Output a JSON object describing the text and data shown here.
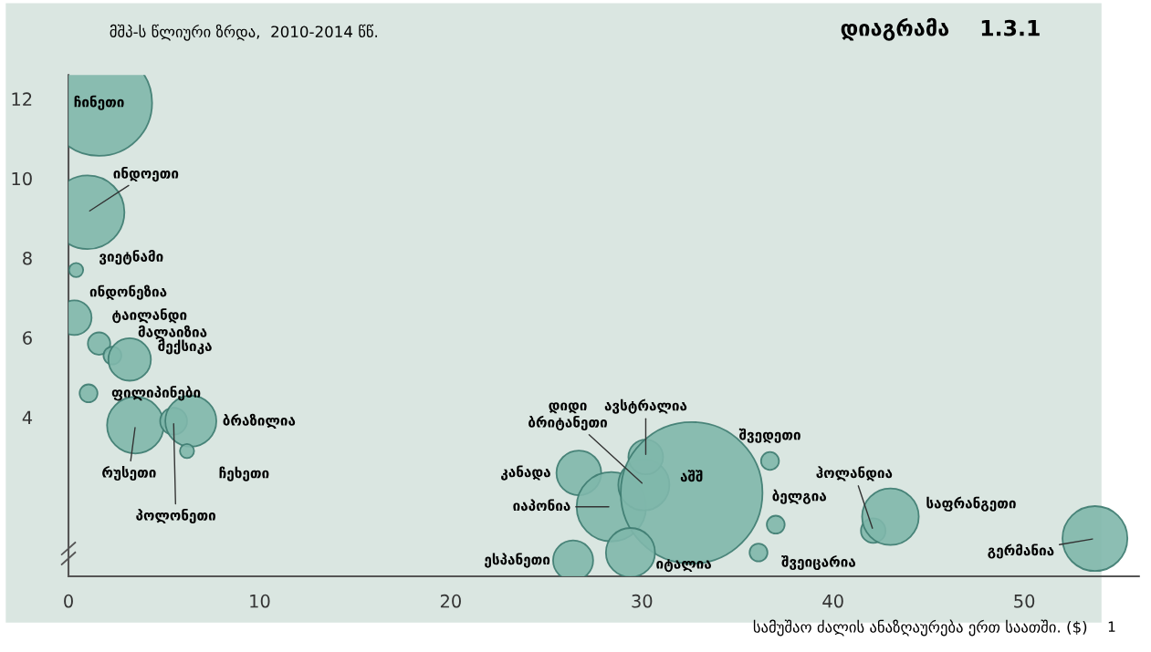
{
  "chart_data": {
    "type": "bubble",
    "title": "დიაგრამა    1.3.1",
    "ylabel": "მშპ-ს წლიური ზრდა,  2010-2014 წწ.",
    "xlabel": "სამუშაო ძალის ანაზღაურება ერთ საათში. ($)",
    "series": [
      {
        "color": "#7fb7ab",
        "x": [
          1.6,
          1.0,
          0.4,
          0.3,
          1.6,
          2.3,
          3.2,
          1.05,
          3.5,
          5.5,
          6.4,
          6.2,
          26.7,
          28.4,
          30.1,
          30.2,
          32.6,
          36.7,
          37.0,
          36.1,
          29.4,
          26.4,
          42.1,
          43.0,
          53.7
        ],
        "values": [
          11.9,
          9.15,
          7.7,
          6.5,
          5.85,
          5.55,
          5.45,
          4.6,
          3.8,
          3.9,
          3.9,
          3.15,
          2.6,
          1.75,
          2.3,
          3.0,
          2.1,
          2.9,
          1.3,
          0.6,
          0.6,
          0.4,
          1.15,
          1.5,
          0.95
        ],
        "sizes": [
          0.56,
          0.27,
          0.01,
          0.06,
          0.025,
          0.016,
          0.09,
          0.016,
          0.16,
          0.036,
          0.13,
          0.01,
          0.1,
          0.24,
          0.13,
          0.06,
          1,
          0.016,
          0.016,
          0.016,
          0.12,
          0.08,
          0.03,
          0.16,
          0.21
        ]
      }
    ],
    "xlim": [
      0,
      56
    ],
    "xticks": [
      0,
      10,
      20,
      30,
      40,
      50
    ],
    "ylim": [
      0,
      12.6
    ],
    "yticks": [
      4,
      6,
      8,
      10,
      12
    ],
    "grid": false,
    "legend": false,
    "annotations": [
      {
        "text": "ჩინეთი",
        "x": 1.6,
        "y": 11.9
      },
      {
        "text": "ინდოეთი",
        "x": 1.0,
        "y": 9.15
      },
      {
        "text": "ვიეტნამი",
        "x": 0.4,
        "y": 7.7
      },
      {
        "text": "ინდონეზია",
        "x": 0.3,
        "y": 6.5
      },
      {
        "text": "ტაილანდი",
        "x": 1.6,
        "y": 5.85
      },
      {
        "text": "მალაიზია",
        "x": 2.3,
        "y": 5.55
      },
      {
        "text": "მექსიკა",
        "x": 3.2,
        "y": 5.45
      },
      {
        "text": "ფილიპინები",
        "x": 1.05,
        "y": 4.6
      },
      {
        "text": "რუსეთი",
        "x": 3.5,
        "y": 3.8
      },
      {
        "text": "პოლონეთი",
        "x": 5.5,
        "y": 3.9
      },
      {
        "text": "ბრაზილია",
        "x": 6.4,
        "y": 3.9
      },
      {
        "text": "ჩეხეთი",
        "x": 6.2,
        "y": 3.15
      },
      {
        "text": "კანადა",
        "x": 26.7,
        "y": 2.6
      },
      {
        "text": "იაპონია",
        "x": 28.4,
        "y": 1.75
      },
      {
        "text": "დიდი\nბრიტანეთი",
        "x": 30.1,
        "y": 2.3
      },
      {
        "text": "ავსტრალია",
        "x": 30.2,
        "y": 3.0
      },
      {
        "text": "აშშ",
        "x": 32.6,
        "y": 2.1
      },
      {
        "text": "შვედეთი",
        "x": 36.7,
        "y": 2.9
      },
      {
        "text": "ბელგია",
        "x": 37.0,
        "y": 1.3
      },
      {
        "text": "შვეიცარია",
        "x": 36.1,
        "y": 0.6
      },
      {
        "text": "იტალია",
        "x": 29.4,
        "y": 0.6
      },
      {
        "text": "ესპანეთი",
        "x": 26.4,
        "y": 0.4
      },
      {
        "text": "ჰოლანდია",
        "x": 42.1,
        "y": 1.15
      },
      {
        "text": "საფრანგეთი",
        "x": 43.0,
        "y": 1.5
      },
      {
        "text": "გერმანია",
        "x": 53.7,
        "y": 0.95
      },
      "1"
    ]
  }
}
